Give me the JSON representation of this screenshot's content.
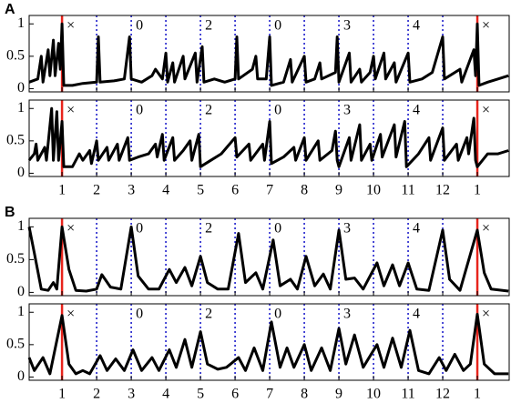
{
  "chart_data": [
    {
      "type": "line",
      "label": "A",
      "color": "#000000",
      "xlim": [
        0.05,
        13.92
      ],
      "ylim": [
        -0.05,
        1.13
      ],
      "yticks": [
        0,
        0.5,
        1
      ],
      "vlines": [
        {
          "x": 1,
          "color": "#e8241c",
          "style": "solid"
        },
        {
          "x": 2,
          "color": "#1010c8",
          "style": "dotted"
        },
        {
          "x": 3,
          "color": "#1010c8",
          "style": "dotted"
        },
        {
          "x": 4,
          "color": "#1010c8",
          "style": "dotted"
        },
        {
          "x": 5,
          "color": "#1010c8",
          "style": "dotted"
        },
        {
          "x": 6,
          "color": "#1010c8",
          "style": "dotted"
        },
        {
          "x": 7,
          "color": "#1010c8",
          "style": "dotted"
        },
        {
          "x": 8,
          "color": "#1010c8",
          "style": "dotted"
        },
        {
          "x": 9,
          "color": "#1010c8",
          "style": "dotted"
        },
        {
          "x": 10,
          "color": "#1010c8",
          "style": "dotted"
        },
        {
          "x": 11,
          "color": "#1010c8",
          "style": "dotted"
        },
        {
          "x": 12,
          "color": "#1010c8",
          "style": "dotted"
        },
        {
          "x": 13,
          "color": "#e8241c",
          "style": "solid"
        }
      ],
      "annotations": [
        {
          "x": 1,
          "text": "×"
        },
        {
          "x": 3,
          "text": "0"
        },
        {
          "x": 5,
          "text": "2"
        },
        {
          "x": 7,
          "text": "0"
        },
        {
          "x": 9,
          "text": "3"
        },
        {
          "x": 11,
          "text": "4"
        },
        {
          "x": 13,
          "text": "×"
        }
      ],
      "x": [
        0.05,
        0.3,
        0.4,
        0.45,
        0.6,
        0.65,
        0.75,
        0.8,
        0.9,
        0.95,
        1.0,
        1.05,
        1.3,
        1.6,
        2.0,
        2.05,
        2.1,
        2.5,
        2.8,
        2.95,
        3.0,
        3.3,
        3.6,
        3.7,
        3.9,
        4.0,
        4.05,
        4.2,
        4.25,
        4.5,
        4.55,
        4.85,
        4.9,
        5.05,
        5.1,
        5.4,
        5.7,
        6.0,
        6.05,
        6.1,
        6.5,
        6.6,
        6.65,
        6.9,
        7.0,
        7.05,
        7.4,
        7.6,
        7.65,
        8.0,
        8.05,
        8.3,
        8.45,
        8.5,
        8.9,
        8.95,
        9.0,
        9.3,
        9.35,
        9.6,
        9.65,
        9.9,
        10.0,
        10.05,
        10.3,
        10.35,
        10.6,
        10.65,
        11.0,
        11.05,
        11.4,
        11.7,
        12.0,
        12.05,
        12.5,
        12.55,
        12.9,
        12.95,
        13.0,
        13.05,
        13.3,
        13.6,
        13.9
      ],
      "values": [
        0.1,
        0.15,
        0.5,
        0.1,
        0.6,
        0.2,
        0.75,
        0.2,
        0.7,
        0.3,
        1.0,
        0.05,
        0.05,
        0.08,
        0.1,
        0.8,
        0.1,
        0.12,
        0.15,
        0.8,
        0.15,
        0.1,
        0.2,
        0.3,
        0.15,
        0.55,
        0.1,
        0.4,
        0.1,
        0.5,
        0.15,
        0.55,
        0.1,
        0.65,
        0.1,
        0.15,
        0.1,
        0.15,
        0.8,
        0.15,
        0.3,
        0.5,
        0.15,
        0.15,
        0.8,
        0.05,
        0.1,
        0.45,
        0.1,
        0.5,
        0.1,
        0.15,
        0.4,
        0.15,
        0.25,
        0.8,
        0.1,
        0.55,
        0.1,
        0.3,
        0.1,
        0.25,
        0.5,
        0.15,
        0.55,
        0.15,
        0.4,
        0.1,
        0.55,
        0.1,
        0.15,
        0.25,
        0.8,
        0.15,
        0.3,
        0.1,
        0.6,
        0.2,
        1.0,
        0.05,
        0.1,
        0.15,
        0.2
      ]
    },
    {
      "type": "line",
      "color": "#000000",
      "xlim": [
        0.05,
        13.92
      ],
      "ylim": [
        -0.05,
        1.13
      ],
      "yticks": [
        0,
        0.5,
        1
      ],
      "xticks": [
        1,
        2,
        3,
        4,
        5,
        6,
        7,
        8,
        9,
        10,
        11,
        12,
        {
          "value": 13,
          "label": "1"
        }
      ],
      "vlines": [
        {
          "x": 1,
          "color": "#e8241c",
          "style": "solid"
        },
        {
          "x": 2,
          "color": "#1010c8",
          "style": "dotted"
        },
        {
          "x": 3,
          "color": "#1010c8",
          "style": "dotted"
        },
        {
          "x": 4,
          "color": "#1010c8",
          "style": "dotted"
        },
        {
          "x": 5,
          "color": "#1010c8",
          "style": "dotted"
        },
        {
          "x": 6,
          "color": "#1010c8",
          "style": "dotted"
        },
        {
          "x": 7,
          "color": "#1010c8",
          "style": "dotted"
        },
        {
          "x": 8,
          "color": "#1010c8",
          "style": "dotted"
        },
        {
          "x": 9,
          "color": "#1010c8",
          "style": "dotted"
        },
        {
          "x": 10,
          "color": "#1010c8",
          "style": "dotted"
        },
        {
          "x": 11,
          "color": "#1010c8",
          "style": "dotted"
        },
        {
          "x": 12,
          "color": "#1010c8",
          "style": "dotted"
        },
        {
          "x": 13,
          "color": "#e8241c",
          "style": "solid"
        }
      ],
      "annotations": [
        {
          "x": 1,
          "text": "×"
        },
        {
          "x": 3,
          "text": "0"
        },
        {
          "x": 5,
          "text": "2"
        },
        {
          "x": 7,
          "text": "0"
        },
        {
          "x": 9,
          "text": "3"
        },
        {
          "x": 11,
          "text": "4"
        },
        {
          "x": 13,
          "text": "×"
        }
      ],
      "x": [
        0.05,
        0.2,
        0.25,
        0.3,
        0.5,
        0.55,
        0.7,
        0.75,
        0.85,
        0.9,
        1.0,
        1.05,
        1.3,
        1.5,
        1.6,
        1.8,
        1.85,
        2.0,
        2.05,
        2.3,
        2.35,
        2.6,
        2.65,
        2.9,
        2.95,
        3.2,
        3.5,
        3.7,
        3.75,
        3.9,
        3.95,
        4.2,
        4.25,
        4.5,
        4.7,
        4.75,
        4.95,
        5.0,
        5.3,
        5.6,
        6.0,
        6.05,
        6.4,
        6.45,
        6.8,
        6.85,
        7.0,
        7.05,
        7.4,
        7.7,
        7.75,
        8.0,
        8.05,
        8.4,
        8.45,
        8.8,
        8.9,
        8.95,
        9.0,
        9.3,
        9.35,
        9.6,
        9.65,
        9.9,
        9.95,
        10.2,
        10.25,
        10.6,
        10.65,
        10.9,
        10.95,
        11.3,
        11.6,
        11.65,
        12.0,
        12.05,
        12.4,
        12.45,
        12.7,
        12.75,
        12.9,
        12.95,
        13.0,
        13.3,
        13.6,
        13.9
      ],
      "values": [
        0.2,
        0.3,
        0.45,
        0.2,
        0.4,
        0.2,
        1.0,
        0.2,
        0.95,
        0.2,
        0.8,
        0.1,
        0.1,
        0.3,
        0.2,
        0.35,
        0.15,
        0.5,
        0.2,
        0.4,
        0.2,
        0.45,
        0.2,
        0.55,
        0.2,
        0.25,
        0.3,
        0.45,
        0.25,
        0.6,
        0.2,
        0.55,
        0.2,
        0.35,
        0.5,
        0.2,
        0.6,
        0.1,
        0.2,
        0.3,
        0.55,
        0.25,
        0.45,
        0.2,
        0.45,
        0.2,
        0.8,
        0.15,
        0.25,
        0.4,
        0.2,
        0.55,
        0.2,
        0.5,
        0.2,
        0.35,
        0.65,
        0.2,
        0.1,
        0.55,
        0.2,
        0.75,
        0.2,
        0.45,
        0.2,
        0.6,
        0.25,
        0.75,
        0.25,
        0.8,
        0.1,
        0.3,
        0.55,
        0.2,
        0.7,
        0.2,
        0.45,
        0.2,
        0.55,
        0.3,
        0.85,
        0.2,
        0.1,
        0.3,
        0.3,
        0.35
      ]
    },
    {
      "type": "line",
      "label": "B",
      "color": "#000000",
      "xlim": [
        0.05,
        13.92
      ],
      "ylim": [
        -0.05,
        1.13
      ],
      "yticks": [
        0,
        0.5,
        1
      ],
      "vlines": [
        {
          "x": 1,
          "color": "#e8241c",
          "style": "solid"
        },
        {
          "x": 2,
          "color": "#1010c8",
          "style": "dotted"
        },
        {
          "x": 3,
          "color": "#1010c8",
          "style": "dotted"
        },
        {
          "x": 4,
          "color": "#1010c8",
          "style": "dotted"
        },
        {
          "x": 5,
          "color": "#1010c8",
          "style": "dotted"
        },
        {
          "x": 6,
          "color": "#1010c8",
          "style": "dotted"
        },
        {
          "x": 7,
          "color": "#1010c8",
          "style": "dotted"
        },
        {
          "x": 8,
          "color": "#1010c8",
          "style": "dotted"
        },
        {
          "x": 9,
          "color": "#1010c8",
          "style": "dotted"
        },
        {
          "x": 10,
          "color": "#1010c8",
          "style": "dotted"
        },
        {
          "x": 11,
          "color": "#1010c8",
          "style": "dotted"
        },
        {
          "x": 12,
          "color": "#1010c8",
          "style": "dotted"
        },
        {
          "x": 13,
          "color": "#e8241c",
          "style": "solid"
        }
      ],
      "annotations": [
        {
          "x": 1,
          "text": "×"
        },
        {
          "x": 3,
          "text": "0"
        },
        {
          "x": 5,
          "text": "2"
        },
        {
          "x": 7,
          "text": "0"
        },
        {
          "x": 9,
          "text": "3"
        },
        {
          "x": 11,
          "text": "4"
        },
        {
          "x": 13,
          "text": "×"
        }
      ],
      "x": [
        0.05,
        0.2,
        0.4,
        0.6,
        0.75,
        0.85,
        1.0,
        1.2,
        1.4,
        1.7,
        2.0,
        2.15,
        2.4,
        2.7,
        3.0,
        3.2,
        3.5,
        3.8,
        4.1,
        4.3,
        4.55,
        4.75,
        5.0,
        5.2,
        5.5,
        5.8,
        6.1,
        6.3,
        6.6,
        6.8,
        7.1,
        7.3,
        7.6,
        7.8,
        8.05,
        8.3,
        8.55,
        8.75,
        9.0,
        9.2,
        9.45,
        9.7,
        10.1,
        10.3,
        10.55,
        10.75,
        11.0,
        11.25,
        11.6,
        12.0,
        12.2,
        12.5,
        13.0,
        13.2,
        13.4,
        13.9
      ],
      "values": [
        1.0,
        0.6,
        0.05,
        0.03,
        0.15,
        0.05,
        1.0,
        0.35,
        0.03,
        0.02,
        0.05,
        0.27,
        0.08,
        0.05,
        1.0,
        0.25,
        0.05,
        0.05,
        0.35,
        0.15,
        0.38,
        0.1,
        0.55,
        0.15,
        0.05,
        0.05,
        0.9,
        0.15,
        0.3,
        0.05,
        0.8,
        0.1,
        0.2,
        0.05,
        0.55,
        0.1,
        0.28,
        0.05,
        0.95,
        0.2,
        0.22,
        0.05,
        0.45,
        0.1,
        0.42,
        0.1,
        0.45,
        0.05,
        0.03,
        0.95,
        0.2,
        0.03,
        0.95,
        0.3,
        0.05,
        0.02
      ]
    },
    {
      "type": "line",
      "color": "#000000",
      "xlim": [
        0.05,
        13.92
      ],
      "ylim": [
        -0.05,
        1.13
      ],
      "yticks": [
        0,
        0.5,
        1
      ],
      "xticks": [
        1,
        2,
        3,
        4,
        5,
        6,
        7,
        8,
        9,
        10,
        11,
        12,
        {
          "value": 13,
          "label": "1"
        }
      ],
      "vlines": [
        {
          "x": 1,
          "color": "#e8241c",
          "style": "solid"
        },
        {
          "x": 2,
          "color": "#1010c8",
          "style": "dotted"
        },
        {
          "x": 3,
          "color": "#1010c8",
          "style": "dotted"
        },
        {
          "x": 4,
          "color": "#1010c8",
          "style": "dotted"
        },
        {
          "x": 5,
          "color": "#1010c8",
          "style": "dotted"
        },
        {
          "x": 6,
          "color": "#1010c8",
          "style": "dotted"
        },
        {
          "x": 7,
          "color": "#1010c8",
          "style": "dotted"
        },
        {
          "x": 8,
          "color": "#1010c8",
          "style": "dotted"
        },
        {
          "x": 9,
          "color": "#1010c8",
          "style": "dotted"
        },
        {
          "x": 10,
          "color": "#1010c8",
          "style": "dotted"
        },
        {
          "x": 11,
          "color": "#1010c8",
          "style": "dotted"
        },
        {
          "x": 12,
          "color": "#1010c8",
          "style": "dotted"
        },
        {
          "x": 13,
          "color": "#e8241c",
          "style": "solid"
        }
      ],
      "annotations": [
        {
          "x": 1,
          "text": "×"
        },
        {
          "x": 3,
          "text": "0"
        },
        {
          "x": 5,
          "text": "2"
        },
        {
          "x": 7,
          "text": "0"
        },
        {
          "x": 9,
          "text": "3"
        },
        {
          "x": 11,
          "text": "4"
        },
        {
          "x": 13,
          "text": "×"
        }
      ],
      "x": [
        0.05,
        0.2,
        0.45,
        0.65,
        1.0,
        1.2,
        1.4,
        1.6,
        1.8,
        2.1,
        2.3,
        2.55,
        2.8,
        3.05,
        3.3,
        3.6,
        3.8,
        4.1,
        4.3,
        4.55,
        4.75,
        5.0,
        5.2,
        5.5,
        5.75,
        6.1,
        6.3,
        6.55,
        6.8,
        7.05,
        7.3,
        7.5,
        7.7,
        8.0,
        8.2,
        8.5,
        8.75,
        9.0,
        9.2,
        9.45,
        9.7,
        10.1,
        10.3,
        10.55,
        10.8,
        11.05,
        11.3,
        11.6,
        11.9,
        12.1,
        12.35,
        12.6,
        12.8,
        13.0,
        13.2,
        13.5,
        13.9
      ],
      "values": [
        0.3,
        0.1,
        0.3,
        0.05,
        0.95,
        0.2,
        0.05,
        0.1,
        0.05,
        0.33,
        0.1,
        0.28,
        0.1,
        0.42,
        0.1,
        0.3,
        0.1,
        0.42,
        0.15,
        0.58,
        0.15,
        0.7,
        0.2,
        0.12,
        0.15,
        0.3,
        0.1,
        0.45,
        0.1,
        0.85,
        0.15,
        0.45,
        0.15,
        0.5,
        0.1,
        0.45,
        0.1,
        0.75,
        0.2,
        0.65,
        0.15,
        0.5,
        0.15,
        0.6,
        0.15,
        0.72,
        0.1,
        0.05,
        0.3,
        0.1,
        0.35,
        0.1,
        0.2,
        0.97,
        0.2,
        0.05,
        0.05
      ]
    }
  ]
}
